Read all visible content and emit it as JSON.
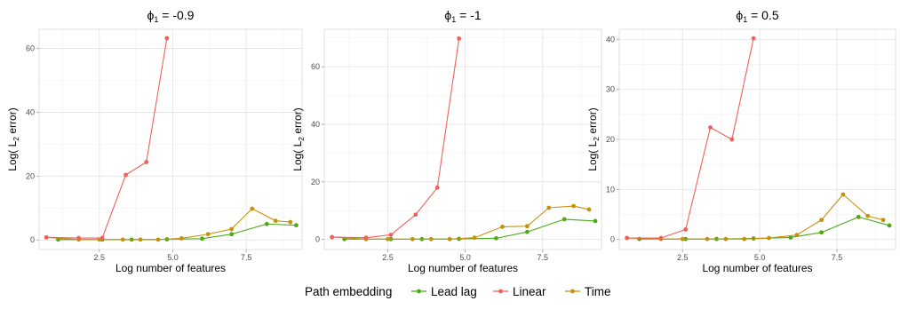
{
  "chart_data": {
    "type": "line",
    "colors": {
      "Lead lag": "#4ea915",
      "Linear": "#f0605a",
      "Time": "#c4920e"
    },
    "legend": {
      "title": "Path embedding",
      "entries": [
        "Lead lag",
        "Linear",
        "Time"
      ],
      "placement": "bottom"
    },
    "xlabel": "Log number of features",
    "ylabel_main": "Log( L",
    "ylabel_sub": "2",
    "ylabel_end": " error)",
    "grid": true,
    "panels": [
      {
        "title_sym": "ϕ",
        "title_sub": "1",
        "title_rest": " = -0.9",
        "xlim": [
          0.45,
          9.4
        ],
        "ylim": [
          -3,
          66
        ],
        "xticks": [
          2.5,
          5.0,
          7.5
        ],
        "xtick_labels": [
          "2.5",
          "5.0",
          "7.5"
        ],
        "yticks": [
          0,
          20,
          40,
          60
        ],
        "ytick_labels": [
          "0",
          "20",
          "40",
          "60"
        ],
        "series": [
          {
            "name": "Lead lag",
            "x": [
              1.1,
              2.6,
              3.6,
              4.8,
              6.0,
              7.0,
              8.2,
              9.2
            ],
            "y": [
              0.1,
              0.1,
              0.1,
              0.2,
              0.4,
              1.8,
              5.0,
              4.6
            ]
          },
          {
            "name": "Linear",
            "x": [
              0.7,
              1.8,
              2.6,
              3.4,
              4.1,
              4.8
            ],
            "y": [
              0.8,
              0.6,
              0.6,
              20.4,
              24.4,
              63.2
            ]
          },
          {
            "name": "Time",
            "x": [
              0.7,
              1.8,
              2.5,
              3.3,
              3.9,
              4.5,
              5.3,
              6.2,
              7.0,
              7.7,
              8.5,
              9.0
            ],
            "y": [
              0.8,
              0.1,
              0.1,
              0.1,
              0.1,
              0.1,
              0.5,
              1.8,
              3.4,
              9.8,
              6.0,
              5.6
            ]
          }
        ]
      },
      {
        "title_sym": "ϕ",
        "title_sub": "1",
        "title_rest": " = -1",
        "xlim": [
          0.45,
          9.4
        ],
        "ylim": [
          -3.5,
          73
        ],
        "xticks": [
          2.5,
          5.0,
          7.5
        ],
        "xtick_labels": [
          "2.5",
          "5.0",
          "7.5"
        ],
        "yticks": [
          0,
          20,
          40,
          60
        ],
        "ytick_labels": [
          "0",
          "20",
          "40",
          "60"
        ],
        "series": [
          {
            "name": "Lead lag",
            "x": [
              1.1,
              2.6,
              3.6,
              4.8,
              6.0,
              7.0,
              8.2,
              9.2
            ],
            "y": [
              0.1,
              0.1,
              0.1,
              0.2,
              0.4,
              2.6,
              7.0,
              6.4
            ]
          },
          {
            "name": "Linear",
            "x": [
              0.7,
              1.8,
              2.6,
              3.4,
              4.1,
              4.8
            ],
            "y": [
              0.8,
              0.6,
              1.6,
              8.6,
              18.0,
              69.8
            ]
          },
          {
            "name": "Time",
            "x": [
              0.7,
              1.8,
              2.5,
              3.3,
              3.9,
              4.5,
              5.3,
              6.2,
              7.0,
              7.7,
              8.5,
              9.0
            ],
            "y": [
              0.8,
              0.1,
              0.1,
              0.1,
              0.1,
              0.1,
              0.6,
              4.4,
              4.6,
              11.0,
              11.6,
              10.4
            ]
          }
        ]
      },
      {
        "title_sym": "ϕ",
        "title_sub": "1",
        "title_rest": " = 0.5",
        "xlim": [
          0.45,
          9.4
        ],
        "ylim": [
          -2,
          42
        ],
        "xticks": [
          2.5,
          5.0,
          7.5
        ],
        "xtick_labels": [
          "2.5",
          "5.0",
          "7.5"
        ],
        "yticks": [
          0,
          10,
          20,
          30,
          40
        ],
        "ytick_labels": [
          "0",
          "10",
          "20",
          "30",
          "40"
        ],
        "series": [
          {
            "name": "Lead lag",
            "x": [
              1.1,
              2.6,
              3.6,
              4.8,
              6.0,
              7.0,
              8.2,
              9.2
            ],
            "y": [
              0.1,
              0.1,
              0.1,
              0.2,
              0.4,
              1.4,
              4.5,
              2.8
            ]
          },
          {
            "name": "Linear",
            "x": [
              0.7,
              1.8,
              2.6,
              3.4,
              4.1,
              4.8
            ],
            "y": [
              0.3,
              0.3,
              2.0,
              22.4,
              20.0,
              40.2
            ]
          },
          {
            "name": "Time",
            "x": [
              0.7,
              1.8,
              2.5,
              3.3,
              3.9,
              4.5,
              5.3,
              6.2,
              7.0,
              7.7,
              8.5,
              9.0
            ],
            "y": [
              0.3,
              0.1,
              0.1,
              0.1,
              0.1,
              0.1,
              0.3,
              0.9,
              3.9,
              9.0,
              4.7,
              3.9
            ]
          }
        ]
      }
    ]
  }
}
